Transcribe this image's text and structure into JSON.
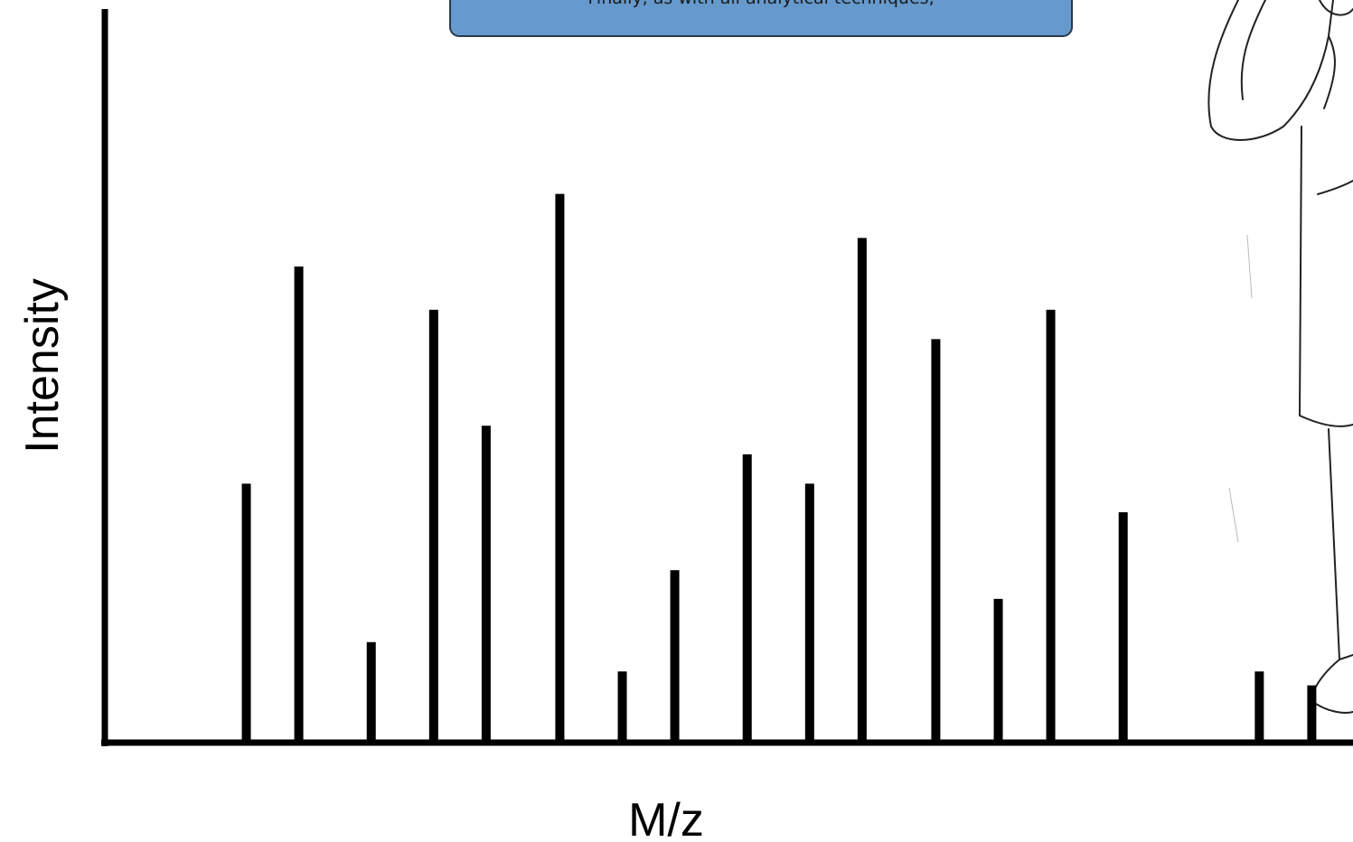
{
  "chart_data": {
    "type": "bar",
    "callout": "Finally, as with all analytical techniques,",
    "x_label": "M/z",
    "y_label": "Intensity",
    "x": [
      11.4,
      15.6,
      21.4,
      26.4,
      30.6,
      36.5,
      41.5,
      45.7,
      51.5,
      56.5,
      60.7,
      66.6,
      71.6,
      75.8,
      81.6,
      92.5,
      96.7
    ],
    "values": [
      35.3,
      64.9,
      13.7,
      59.0,
      43.2,
      74.8,
      9.7,
      23.5,
      39.3,
      35.3,
      68.8,
      55.0,
      19.6,
      59.0,
      31.4,
      9.7,
      7.8
    ],
    "color": "#000000",
    "xlim": [
      0,
      100
    ],
    "ylim": [
      0,
      100
    ]
  }
}
